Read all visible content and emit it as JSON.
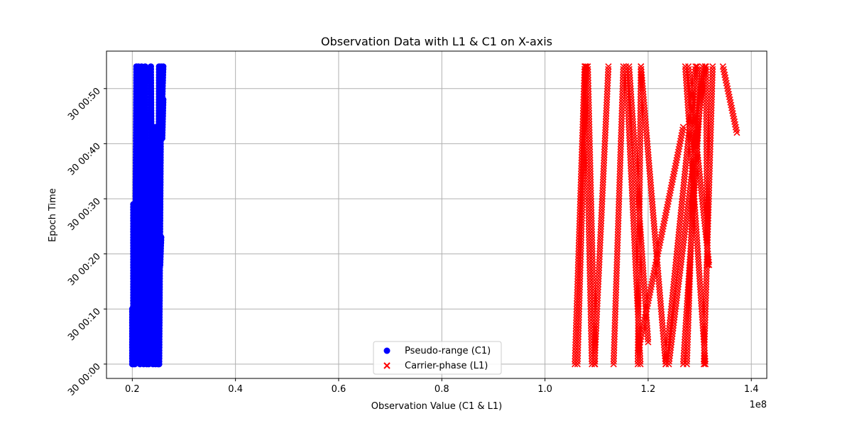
{
  "chart_data": {
    "type": "scatter",
    "title": "Observation Data with L1 & C1 on X-axis",
    "xlabel": "Observation Value (C1 & L1)",
    "ylabel": "Epoch Time",
    "x_offset_label": "1e8",
    "xlim": [
      0.15,
      1.43
    ],
    "ylim": [
      -2.6,
      56.8
    ],
    "grid": true,
    "legend_position": "lower center",
    "x_ticks": [
      {
        "value": 0.2,
        "label": "0.2"
      },
      {
        "value": 0.4,
        "label": "0.4"
      },
      {
        "value": 0.6,
        "label": "0.6"
      },
      {
        "value": 0.8,
        "label": "0.8"
      },
      {
        "value": 1.0,
        "label": "1.0"
      },
      {
        "value": 1.2,
        "label": "1.2"
      },
      {
        "value": 1.4,
        "label": "1.4"
      }
    ],
    "y_ticks": [
      {
        "value": 0,
        "label": "30 00:00"
      },
      {
        "value": 10,
        "label": "30 00:10"
      },
      {
        "value": 20,
        "label": "30 00:20"
      },
      {
        "value": 30,
        "label": "30 00:30"
      },
      {
        "value": 40,
        "label": "30 00:40"
      },
      {
        "value": 50,
        "label": "30 00:50"
      }
    ],
    "series": [
      {
        "name": "Pseudo-range (C1)",
        "marker": "circle",
        "color": "#0000ff",
        "segments": [
          [
            [
              0.2,
              0.0
            ],
            [
              0.2,
              10.0
            ]
          ],
          [
            [
              0.202,
              0.0
            ],
            [
              0.202,
              29.0
            ]
          ],
          [
            [
              0.205,
              0.0
            ],
            [
              0.208,
              54.0
            ]
          ],
          [
            [
              0.215,
              0.0
            ],
            [
              0.212,
              54.0
            ]
          ],
          [
            [
              0.222,
              0.0
            ],
            [
              0.218,
              54.0
            ]
          ],
          [
            [
              0.228,
              0.0
            ],
            [
              0.225,
              54.0
            ]
          ],
          [
            [
              0.232,
              0.0
            ],
            [
              0.23,
              40.0
            ]
          ],
          [
            [
              0.24,
              0.0
            ],
            [
              0.236,
              54.0
            ]
          ],
          [
            [
              0.245,
              0.0
            ],
            [
              0.245,
              43.0
            ]
          ],
          [
            [
              0.25,
              0.0
            ],
            [
              0.252,
              54.0
            ]
          ],
          [
            [
              0.252,
              0.0
            ],
            [
              0.256,
              54.0
            ]
          ],
          [
            [
              0.254,
              18.0
            ],
            [
              0.256,
              23.0
            ]
          ],
          [
            [
              0.256,
              42.0
            ],
            [
              0.26,
              54.0
            ]
          ],
          [
            [
              0.258,
              41.0
            ],
            [
              0.26,
              48.0
            ]
          ]
        ]
      },
      {
        "name": "Carrier-phase (L1)",
        "marker": "x",
        "color": "#ff0000",
        "segments": [
          [
            [
              1.058,
              0.0
            ],
            [
              1.077,
              54.0
            ]
          ],
          [
            [
              1.08,
              54.0
            ],
            [
              1.063,
              0.0
            ]
          ],
          [
            [
              1.078,
              54.0
            ],
            [
              1.091,
              0.0
            ]
          ],
          [
            [
              1.083,
              54.0
            ],
            [
              1.097,
              0.0
            ]
          ],
          [
            [
              1.096,
              0.0
            ],
            [
              1.123,
              54.0
            ]
          ],
          [
            [
              1.133,
              0.0
            ],
            [
              1.152,
              54.0
            ]
          ],
          [
            [
              1.157,
              54.0
            ],
            [
              1.185,
              0.0
            ]
          ],
          [
            [
              1.163,
              54.0
            ],
            [
              1.2,
              4.0
            ]
          ],
          [
            [
              1.18,
              0.0
            ],
            [
              1.186,
              54.0
            ]
          ],
          [
            [
              1.186,
              54.0
            ],
            [
              1.234,
              0.0
            ]
          ],
          [
            [
              1.18,
              2.0
            ],
            [
              1.268,
              43.0
            ]
          ],
          [
            [
              1.234,
              0.0
            ],
            [
              1.292,
              54.0
            ]
          ],
          [
            [
              1.24,
              0.0
            ],
            [
              1.31,
              54.0
            ]
          ],
          [
            [
              1.272,
              54.0
            ],
            [
              1.311,
              0.0
            ]
          ],
          [
            [
              1.278,
              54.0
            ],
            [
              1.318,
              18.0
            ]
          ],
          [
            [
              1.268,
              0.0
            ],
            [
              1.305,
              54.0
            ]
          ],
          [
            [
              1.295,
              54.0
            ],
            [
              1.275,
              0.0
            ]
          ],
          [
            [
              1.325,
              54.0
            ],
            [
              1.308,
              0.0
            ]
          ],
          [
            [
              1.312,
              54.0
            ],
            [
              1.315,
              18.0
            ]
          ],
          [
            [
              1.345,
              54.0
            ],
            [
              1.372,
              42.0
            ]
          ]
        ]
      }
    ]
  }
}
